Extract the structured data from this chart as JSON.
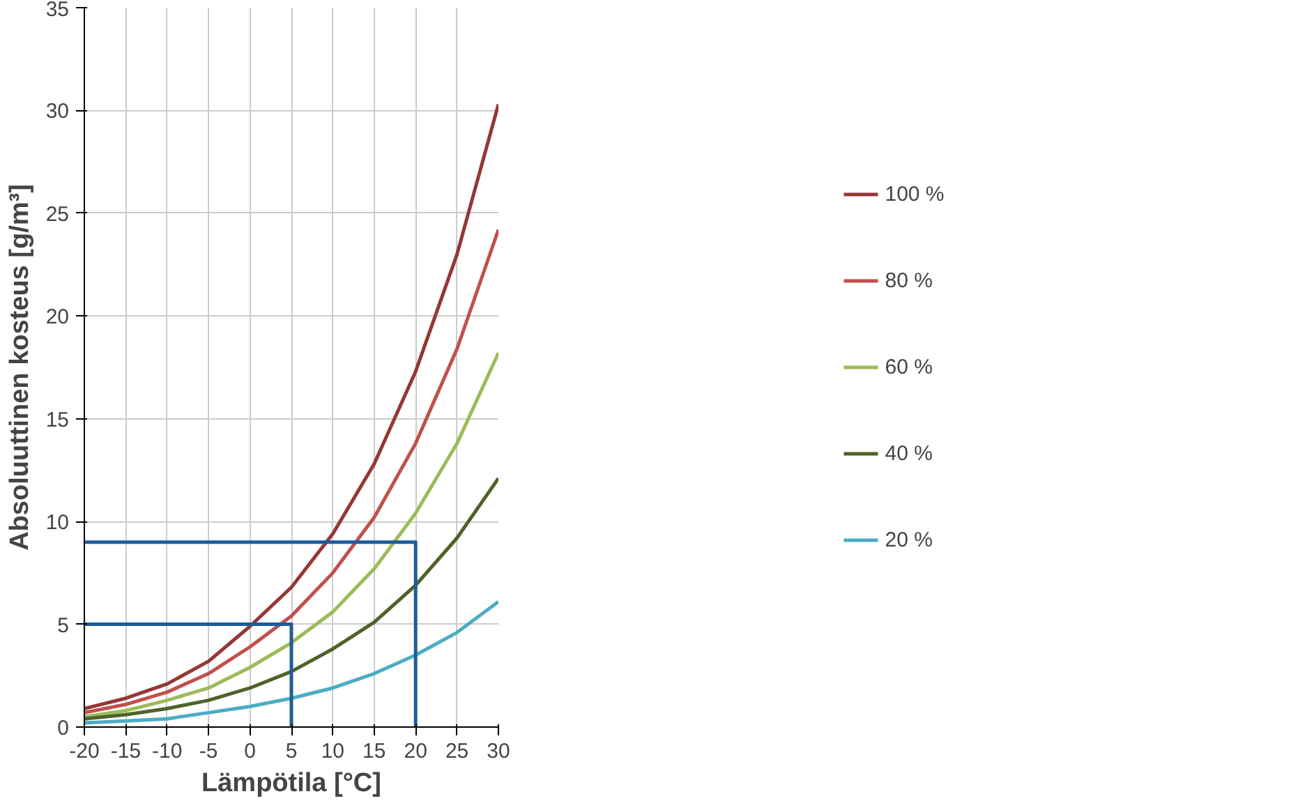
{
  "chart_data": {
    "type": "line",
    "xlabel": "Lämpötila [°C]",
    "ylabel": "Absoluuttinen kosteus [g/m³]",
    "x": [
      -20,
      -15,
      -10,
      -5,
      0,
      5,
      10,
      15,
      20,
      25,
      30
    ],
    "series": [
      {
        "name": "100 %",
        "color": "#953735",
        "values": [
          0.9,
          1.4,
          2.1,
          3.2,
          4.9,
          6.8,
          9.4,
          12.8,
          17.3,
          23.0,
          30.3
        ]
      },
      {
        "name": "80 %",
        "color": "#c0504d",
        "values": [
          0.7,
          1.1,
          1.7,
          2.6,
          3.9,
          5.4,
          7.5,
          10.2,
          13.8,
          18.4,
          24.2
        ]
      },
      {
        "name": "60 %",
        "color": "#9bbb59",
        "values": [
          0.5,
          0.8,
          1.3,
          1.9,
          2.9,
          4.1,
          5.6,
          7.7,
          10.4,
          13.8,
          18.2
        ]
      },
      {
        "name": "40 %",
        "color": "#4f6228",
        "values": [
          0.4,
          0.6,
          0.9,
          1.3,
          1.9,
          2.7,
          3.8,
          5.1,
          6.9,
          9.2,
          12.1
        ]
      },
      {
        "name": "20 %",
        "color": "#4bacc6",
        "values": [
          0.2,
          0.3,
          0.4,
          0.7,
          1.0,
          1.4,
          1.9,
          2.6,
          3.5,
          4.6,
          6.1
        ]
      },
      {
        "color": "#1f5c99",
        "x": [
          -20,
          20,
          20
        ],
        "values": [
          9,
          9,
          0
        ]
      },
      {
        "color": "#1f5c99",
        "x": [
          -20,
          5,
          5
        ],
        "values": [
          5,
          5,
          0
        ]
      }
    ],
    "xlim": [
      -20,
      30
    ],
    "ylim": [
      0,
      35
    ],
    "xticks": [
      -20,
      -15,
      -10,
      -5,
      0,
      5,
      10,
      15,
      20,
      25,
      30
    ],
    "yticks": [
      0,
      5,
      10,
      15,
      20,
      25,
      30,
      35
    ],
    "grid": true,
    "legend": "right",
    "marker": "none",
    "line_style": "solid"
  }
}
